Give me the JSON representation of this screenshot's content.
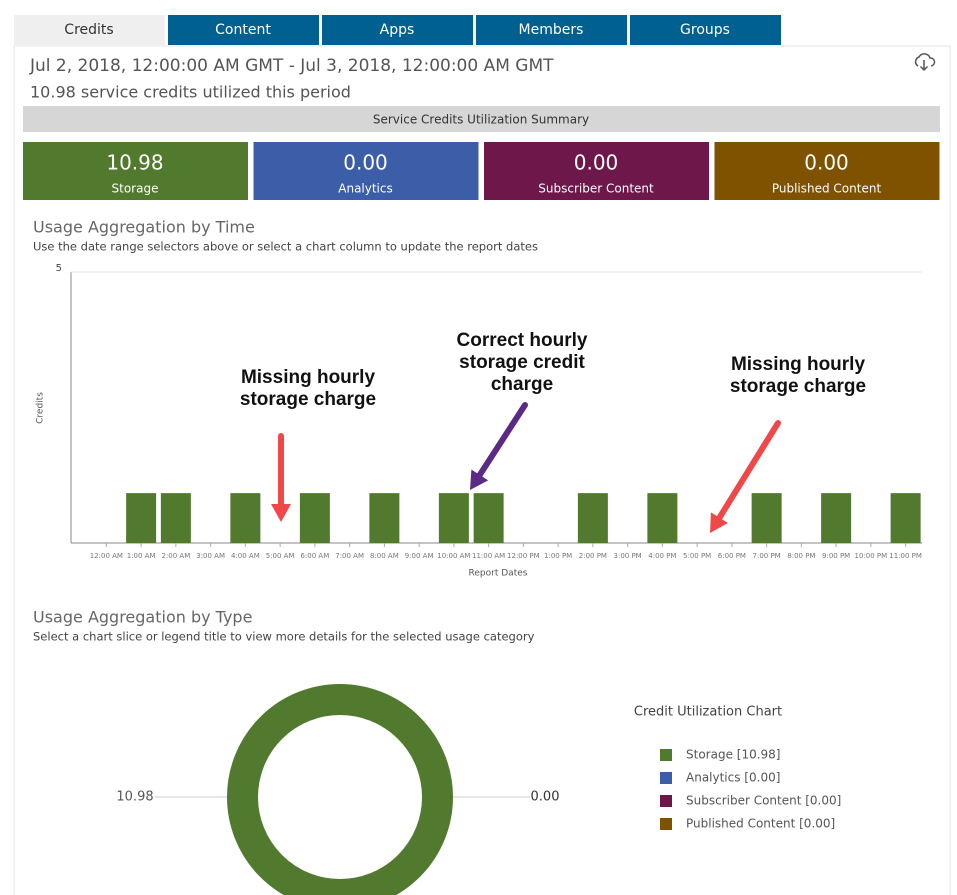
{
  "tabs": [
    "Credits",
    "Content",
    "Apps",
    "Members",
    "Groups"
  ],
  "header": {
    "date_range": "Jul 2, 2018, 12:00:00 AM GMT - Jul 3, 2018, 12:00:00 AM GMT",
    "summary_text": "10.98 service credits utilized this period"
  },
  "summary_title": "Service Credits Utilization Summary",
  "cards": [
    {
      "value": "10.98",
      "label": "Storage",
      "color": "#527a2e"
    },
    {
      "value": "0.00",
      "label": "Analytics",
      "color": "#3c5ea8"
    },
    {
      "value": "0.00",
      "label": "Subscriber Content",
      "color": "#6d174b"
    },
    {
      "value": "0.00",
      "label": "Published Content",
      "color": "#7f5200"
    }
  ],
  "chart_data": [
    {
      "type": "bar",
      "title": "Usage Aggregation by Time",
      "subtitle": "Use the date range selectors above or select a chart column to update the report dates",
      "y_label": "Credits",
      "x_label": "Report Dates",
      "categories": [
        "12:00 AM",
        "1:00 AM",
        "2:00 AM",
        "3:00 AM",
        "4:00 AM",
        "5:00 AM",
        "6:00 AM",
        "7:00 AM",
        "8:00 AM",
        "9:00 AM",
        "10:00 AM",
        "11:00 AM",
        "12:00 PM",
        "1:00 PM",
        "2:00 PM",
        "3:00 PM",
        "4:00 PM",
        "5:00 PM",
        "6:00 PM",
        "7:00 PM",
        "8:00 PM",
        "9:00 PM",
        "10:00 PM",
        "11:00 PM"
      ],
      "values": [
        0,
        0.92,
        0.92,
        0,
        0.92,
        0,
        0.92,
        0,
        0.92,
        0,
        0.92,
        0.92,
        0,
        0,
        0.92,
        0,
        0.92,
        0,
        0,
        0.92,
        0,
        0.92,
        0,
        0.92
      ],
      "color": "#527a2e",
      "ylim": [
        0,
        5
      ],
      "yticks": [
        5
      ],
      "annotations": [
        {
          "text": [
            "Missing hourly",
            "storage charge"
          ],
          "color": "#f04848"
        },
        {
          "text": [
            "Correct hourly",
            "storage credit",
            "charge"
          ],
          "color": "#5b2a86"
        },
        {
          "text": [
            "Missing hourly",
            "storage charge"
          ],
          "color": "#f04848"
        }
      ]
    },
    {
      "type": "pie",
      "donut": true,
      "title": "Usage Aggregation by Type",
      "subtitle": "Select a chart slice or legend title to view more details for the selected usage category",
      "legend_title": "Credit Utilization Chart",
      "categories": [
        "Storage [10.98]",
        "Analytics [0.00]",
        "Subscriber Content [0.00]",
        "Published Content [0.00]"
      ],
      "values": [
        10.98,
        0,
        0,
        0
      ],
      "value_labels": [
        "10.98",
        "0.00",
        null,
        null
      ],
      "colors": [
        "#527a2e",
        "#3c5ea8",
        "#6d174b",
        "#7f5200"
      ]
    }
  ]
}
